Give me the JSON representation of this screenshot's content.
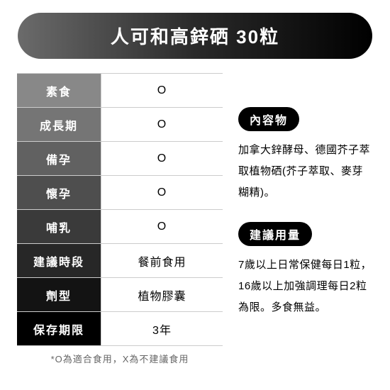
{
  "title": "人可和高鋅硒 30粒",
  "table": {
    "row_gradient_start": "#888888",
    "row_gradient_end": "#000000",
    "rows": [
      {
        "label": "素食",
        "value": "O"
      },
      {
        "label": "成長期",
        "value": "O"
      },
      {
        "label": "備孕",
        "value": "O"
      },
      {
        "label": "懷孕",
        "value": "O"
      },
      {
        "label": "哺乳",
        "value": "O"
      },
      {
        "label": "建議時段",
        "value": "餐前食用"
      },
      {
        "label": "劑型",
        "value": "植物膠囊"
      },
      {
        "label": "保存期限",
        "value": "3年"
      }
    ]
  },
  "footnote": "*O為適合食用，X為不建議食用",
  "sections": [
    {
      "heading": "內容物",
      "body": "加拿大鋅酵母、德國芥子萃取植物硒(芥子萃取、麥芽糊精)。"
    },
    {
      "heading": "建議用量",
      "body": "7歲以上日常保健每日1粒，16歲以上加強調理每日2粒為限。多食無益。"
    }
  ]
}
